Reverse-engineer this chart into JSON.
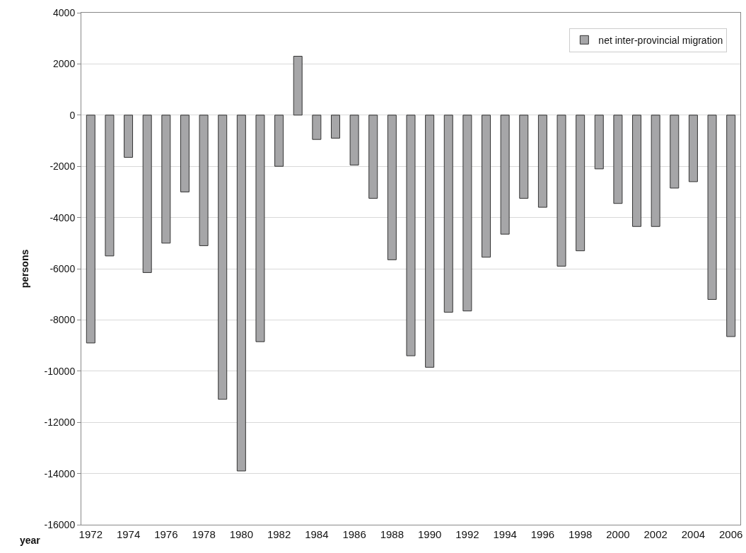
{
  "chart_data": {
    "type": "bar",
    "categories": [
      "1972",
      null,
      "1974",
      null,
      "1976",
      null,
      "1978",
      null,
      "1980",
      null,
      "1982",
      null,
      "1984",
      null,
      "1986",
      null,
      "1988",
      null,
      "1990",
      null,
      "1992",
      null,
      "1994",
      null,
      "1996",
      null,
      "1998",
      null,
      "2000",
      null,
      "2002",
      null,
      "2004",
      null,
      "2006"
    ],
    "series": [
      {
        "name": "net inter-provincial migration",
        "color": "#a6a6a8",
        "values": [
          -8900,
          -5500,
          -1650,
          -6150,
          -5000,
          -3000,
          -5100,
          -11100,
          -13900,
          -8850,
          -2000,
          2300,
          -950,
          -900,
          -1950,
          -3250,
          -5650,
          -9400,
          -9850,
          -7700,
          -7650,
          -5550,
          -4650,
          -3250,
          -3600,
          -5900,
          -5300,
          -2100,
          -3450,
          -4350,
          -4350,
          -2850,
          -2600,
          -7200,
          -8650
        ]
      }
    ],
    "xlabel": "year",
    "ylabel": "persons",
    "ylim": [
      -16000,
      4000
    ],
    "yticks": [
      -16000,
      -14000,
      -12000,
      -10000,
      -8000,
      -6000,
      -4000,
      -2000,
      0,
      2000,
      4000
    ],
    "grid": "y",
    "legend": "top right"
  }
}
